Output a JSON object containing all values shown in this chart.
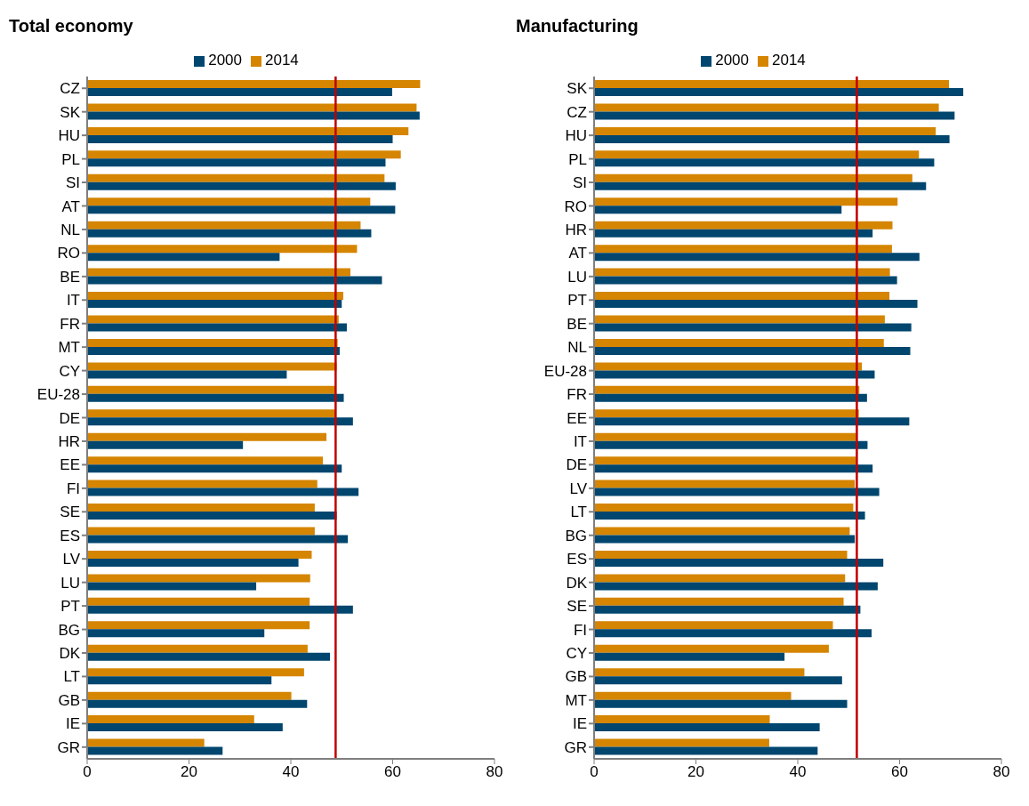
{
  "chart_data": [
    {
      "type": "bar",
      "title": "Total economy",
      "orientation": "horizontal",
      "legend": "top",
      "categories": [
        "CZ",
        "SK",
        "HU",
        "PL",
        "SI",
        "AT",
        "NL",
        "RO",
        "BE",
        "IT",
        "FR",
        "MT",
        "CY",
        "EU-28",
        "DE",
        "HR",
        "EE",
        "FI",
        "SE",
        "ES",
        "LV",
        "LU",
        "PT",
        "BG",
        "DK",
        "LT",
        "GB",
        "IE",
        "GR"
      ],
      "series": [
        {
          "name": "2014",
          "color": "#d58500",
          "values": [
            65.4,
            64.7,
            63.1,
            61.6,
            58.4,
            55.6,
            53.7,
            53.0,
            51.7,
            50.3,
            49.4,
            49.2,
            49.0,
            48.8,
            48.8,
            47.0,
            46.3,
            45.2,
            44.7,
            44.7,
            44.1,
            43.8,
            43.7,
            43.7,
            43.3,
            42.6,
            40.1,
            32.8,
            23.0
          ]
        },
        {
          "name": "2000",
          "color": "#00466f",
          "values": [
            59.9,
            65.3,
            60.0,
            58.6,
            60.6,
            60.5,
            55.8,
            37.8,
            57.9,
            50.0,
            51.0,
            49.6,
            39.2,
            50.4,
            52.2,
            30.6,
            50.0,
            53.3,
            49.0,
            51.2,
            41.5,
            33.2,
            52.2,
            34.8,
            47.7,
            36.2,
            43.2,
            38.4,
            26.6
          ]
        }
      ],
      "xlim": [
        0,
        80
      ],
      "xticks": [
        0,
        20,
        40,
        60,
        80
      ],
      "grid": false,
      "ref_lines": [
        {
          "axis": "x",
          "value": 48.8,
          "color": "#c00000"
        }
      ]
    },
    {
      "type": "bar",
      "title": "Manufacturing",
      "orientation": "horizontal",
      "legend": "top",
      "categories": [
        "SK",
        "CZ",
        "HU",
        "PL",
        "SI",
        "RO",
        "HR",
        "AT",
        "LU",
        "PT",
        "BE",
        "NL",
        "EU-28",
        "FR",
        "EE",
        "IT",
        "DE",
        "LV",
        "LT",
        "BG",
        "ES",
        "DK",
        "SE",
        "FI",
        "CY",
        "GB",
        "MT",
        "IE",
        "GR"
      ],
      "series": [
        {
          "name": "2014",
          "color": "#d58500",
          "values": [
            69.7,
            67.7,
            67.1,
            63.8,
            62.5,
            59.6,
            58.6,
            58.5,
            58.1,
            58.0,
            57.1,
            56.9,
            52.6,
            52.1,
            52.0,
            51.4,
            51.4,
            51.2,
            50.9,
            50.2,
            49.7,
            49.3,
            49.0,
            46.9,
            46.1,
            41.3,
            38.7,
            34.5,
            34.4
          ]
        },
        {
          "name": "2000",
          "color": "#00466f",
          "values": [
            72.5,
            70.8,
            69.8,
            66.8,
            65.2,
            48.6,
            54.7,
            63.9,
            59.5,
            63.5,
            62.3,
            62.1,
            55.1,
            53.6,
            61.9,
            53.7,
            54.7,
            56.0,
            53.2,
            51.2,
            56.8,
            55.7,
            52.3,
            54.5,
            37.4,
            48.7,
            49.7,
            44.3,
            43.9
          ]
        }
      ],
      "xlim": [
        0,
        80
      ],
      "xticks": [
        0,
        20,
        40,
        60,
        80
      ],
      "grid": false,
      "ref_lines": [
        {
          "axis": "x",
          "value": 51.6,
          "color": "#c00000"
        }
      ]
    }
  ]
}
